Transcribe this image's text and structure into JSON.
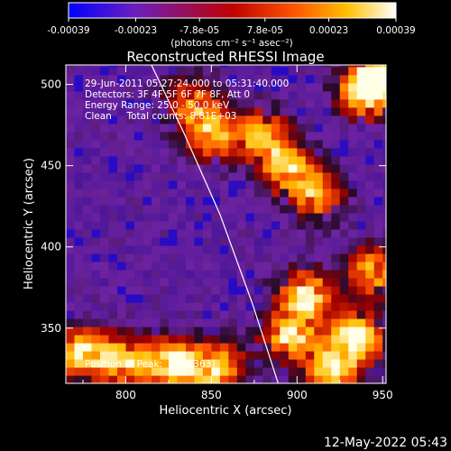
{
  "chart_data": {
    "type": "heatmap",
    "title": "Reconstructed RHESSI Image",
    "xlabel": "Heliocentric X (arcsec)",
    "ylabel": "Heliocentric Y (arcsec)",
    "xlim": [
      765,
      952
    ],
    "ylim": [
      316,
      512
    ],
    "xticks": [
      800,
      850,
      900,
      950
    ],
    "yticks": [
      350,
      400,
      450,
      500
    ],
    "colorbar": {
      "range": [
        -0.00039,
        0.00039
      ],
      "tick_values": [
        -0.00039,
        -0.00023,
        -7.8e-05,
        7.8e-05,
        0.00023,
        0.00039
      ],
      "tick_labels": [
        "-0.00039",
        "-0.00023",
        "-7.8e-05",
        "7.8e-05",
        "0.00023",
        "0.00039"
      ],
      "unit_label": "(photons cm⁻² s⁻¹ asec⁻²)",
      "colors": [
        "#0000ff",
        "#6a1fbf",
        "#c00000",
        "#ff5a00",
        "#ffc000",
        "#ffffff"
      ]
    },
    "annotations": [
      "29-Jun-2011 05:27:24.000 to 05:31:40.000",
      "Detectors: 3F 4F 5F 6F 7F 8F, Att 0",
      "Energy Range: 25.0 - 50.0 keV",
      "Clean     Total counts: 8.81E+03"
    ],
    "peak_label": "Position of Peak:  [397,363]",
    "peak": [
      397,
      363
    ],
    "limb_curve": {
      "x": [
        815,
        834,
        855,
        874,
        889
      ],
      "y": [
        512,
        470,
        420,
        365,
        316
      ]
    },
    "bright_regions": [
      {
        "x": 775,
        "y": 335,
        "intensity": 0.9
      },
      {
        "x": 800,
        "y": 330,
        "intensity": 0.8
      },
      {
        "x": 828,
        "y": 328,
        "intensity": 0.95
      },
      {
        "x": 853,
        "y": 326,
        "intensity": 0.85
      },
      {
        "x": 895,
        "y": 345,
        "intensity": 0.9
      },
      {
        "x": 905,
        "y": 370,
        "intensity": 0.95
      },
      {
        "x": 935,
        "y": 345,
        "intensity": 1.0
      },
      {
        "x": 920,
        "y": 325,
        "intensity": 0.85
      },
      {
        "x": 850,
        "y": 470,
        "intensity": 0.8
      },
      {
        "x": 880,
        "y": 468,
        "intensity": 0.85
      },
      {
        "x": 895,
        "y": 448,
        "intensity": 0.75
      },
      {
        "x": 912,
        "y": 432,
        "intensity": 0.7
      },
      {
        "x": 940,
        "y": 495,
        "intensity": 0.9
      },
      {
        "x": 948,
        "y": 505,
        "intensity": 0.85
      },
      {
        "x": 945,
        "y": 385,
        "intensity": 0.75
      },
      {
        "x": 838,
        "y": 490,
        "intensity": 0.6
      }
    ]
  },
  "footer": {
    "timestamp": "12-May-2022 05:43"
  }
}
